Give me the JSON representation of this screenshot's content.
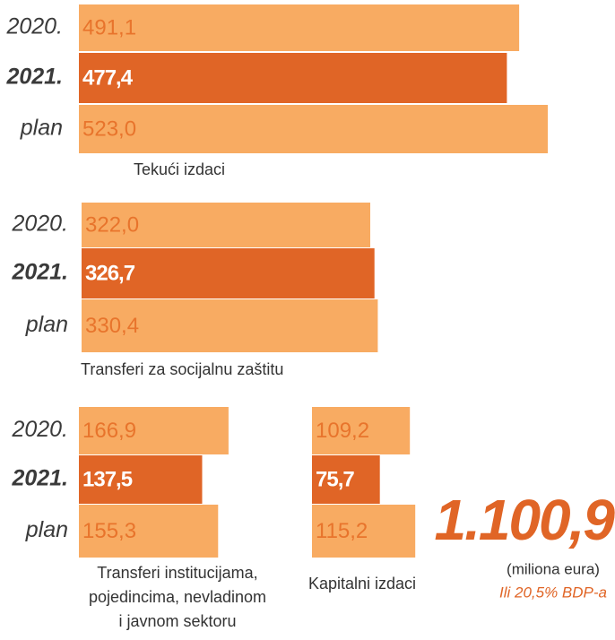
{
  "chart_data": [
    {
      "type": "bar",
      "title": [
        "Tekući izdaci"
      ],
      "categories": [
        "2020.",
        "2021.",
        "plan"
      ],
      "values": [
        491.1,
        477.4,
        523.0
      ],
      "value_labels": [
        "491,1",
        "477,4",
        "523,0"
      ],
      "colors": [
        "#f8ab62",
        "#e06526",
        "#f8ab62"
      ]
    },
    {
      "type": "bar",
      "title": [
        "Transferi za socijalnu zaštitu"
      ],
      "categories": [
        "2020.",
        "2021.",
        "plan"
      ],
      "values": [
        322.0,
        326.7,
        330.4
      ],
      "value_labels": [
        "322,0",
        "326,7",
        "330,4"
      ],
      "colors": [
        "#f8ab62",
        "#e06526",
        "#f8ab62"
      ]
    },
    {
      "type": "bar",
      "title": [
        "Transferi institucijama,",
        "pojedincima, nevladinom",
        "i javnom sektoru"
      ],
      "categories": [
        "2020.",
        "2021.",
        "plan"
      ],
      "values": [
        166.9,
        137.5,
        155.3
      ],
      "value_labels": [
        "166,9",
        "137,5",
        "155,3"
      ],
      "colors": [
        "#f8ab62",
        "#e06526",
        "#f8ab62"
      ]
    },
    {
      "type": "bar",
      "title": [
        "Kapitalni izdaci"
      ],
      "categories": [
        null,
        null,
        null
      ],
      "values": [
        109.2,
        75.7,
        115.2
      ],
      "value_labels": [
        "109,2",
        "75,7",
        "115,2"
      ],
      "colors": [
        "#f8ab62",
        "#e06526",
        "#f8ab62"
      ]
    }
  ],
  "summary": {
    "total": 1100.9,
    "total_label": "1.100,9",
    "unit": "(miliona eura)",
    "note": "Ili 20,5% BDP-a"
  }
}
